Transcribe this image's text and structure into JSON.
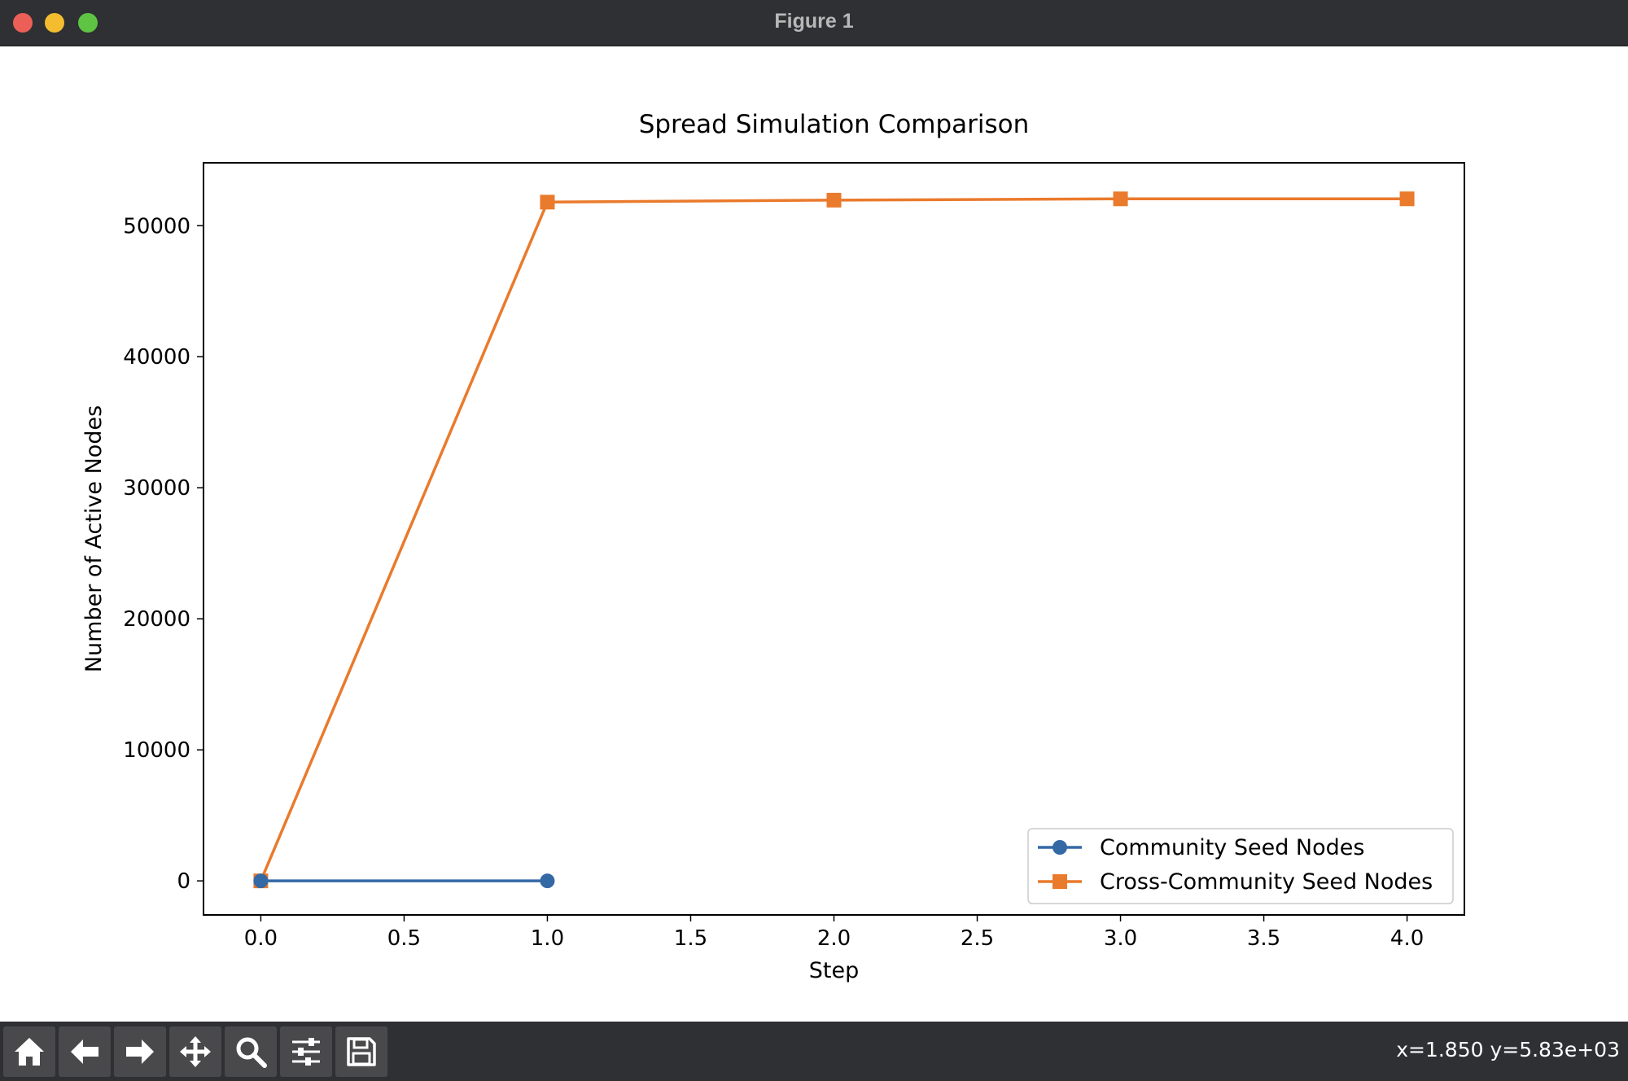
{
  "window": {
    "title": "Figure 1"
  },
  "toolbar": {
    "tools": [
      {
        "name": "home-icon"
      },
      {
        "name": "back-arrow-icon"
      },
      {
        "name": "forward-arrow-icon"
      },
      {
        "name": "pan-move-icon"
      },
      {
        "name": "zoom-magnifier-icon"
      },
      {
        "name": "configure-subplots-icon"
      },
      {
        "name": "save-floppy-icon"
      }
    ],
    "coords": "x=1.850 y=5.83e+03"
  },
  "chart_data": {
    "type": "line",
    "title": "Spread Simulation Comparison",
    "xlabel": "Step",
    "ylabel": "Number of Active Nodes",
    "xlim": [
      -0.2,
      4.2
    ],
    "ylim": [
      -2600,
      54800
    ],
    "xticks": [
      "0.0",
      "0.5",
      "1.0",
      "1.5",
      "2.0",
      "2.5",
      "3.0",
      "3.5",
      "4.0"
    ],
    "yticks": [
      "0",
      "10000",
      "20000",
      "30000",
      "40000",
      "50000"
    ],
    "grid": false,
    "legend_position": "lower-right",
    "series": [
      {
        "name": "Community Seed Nodes",
        "marker": "circle",
        "color": "#3469a6",
        "x": [
          0,
          1
        ],
        "y": [
          0,
          0
        ]
      },
      {
        "name": "Cross-Community Seed Nodes",
        "marker": "square",
        "color": "#ea7a2c",
        "x": [
          0,
          1,
          2,
          3,
          4
        ],
        "y": [
          0,
          51800,
          51950,
          52050,
          52050
        ]
      }
    ]
  }
}
